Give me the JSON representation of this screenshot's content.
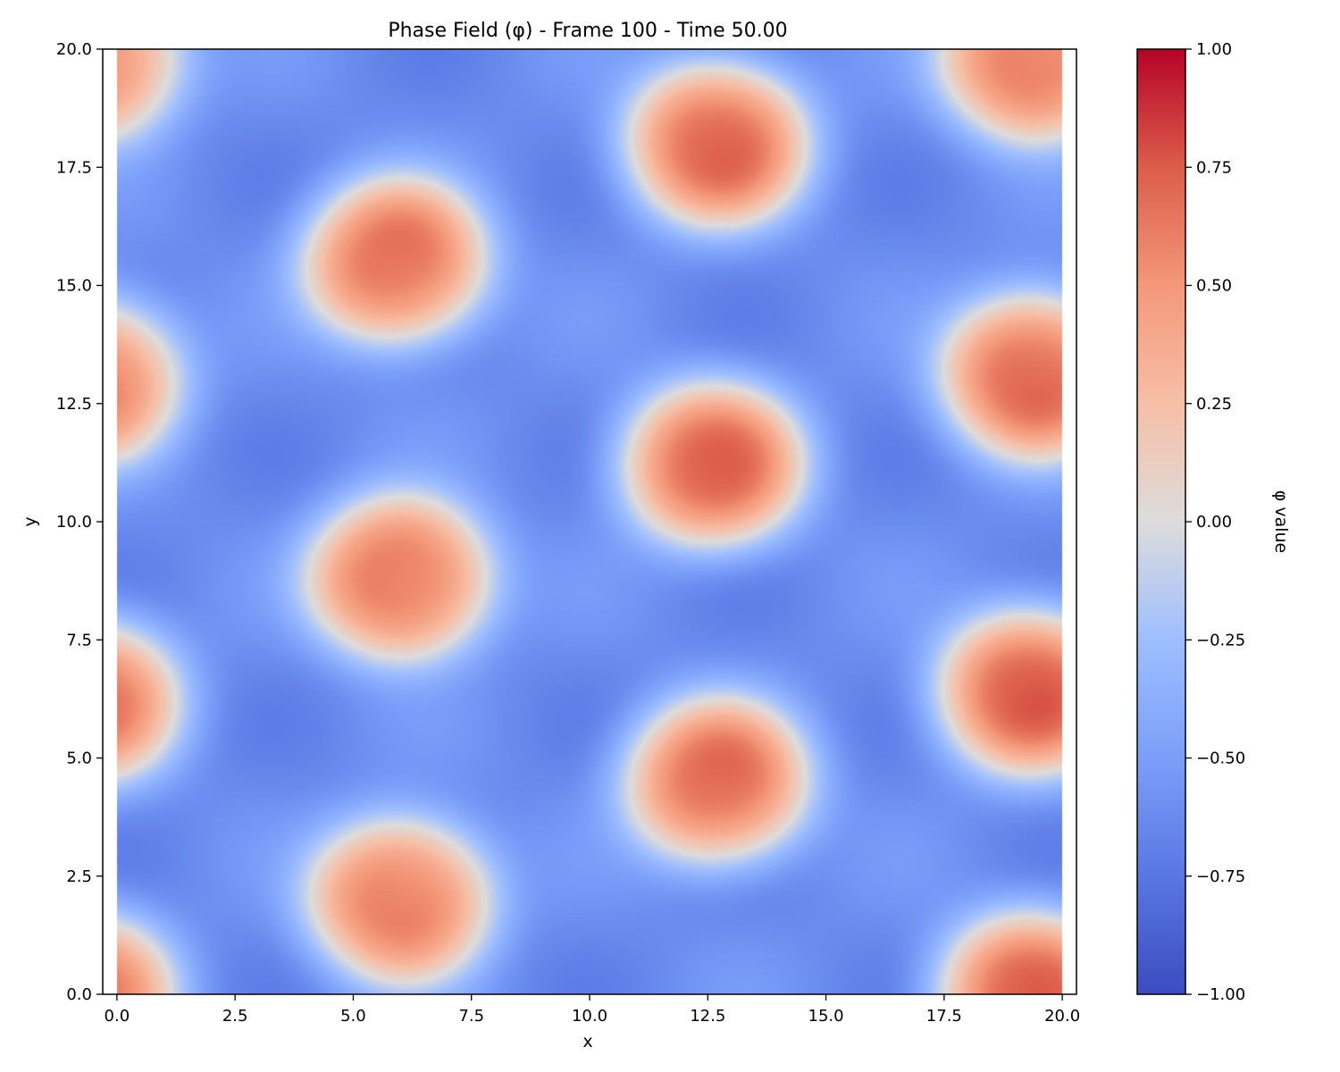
{
  "chart_data": {
    "type": "heatmap",
    "title": "Phase Field (φ) - Frame 100 - Time 50.00",
    "xlabel": "x",
    "ylabel": "y",
    "xlim": [
      -0.3,
      20.3
    ],
    "ylim": [
      0,
      20
    ],
    "data_extent": {
      "x": [
        0,
        20
      ],
      "y": [
        0,
        20
      ]
    },
    "x_ticks": [
      {
        "value": 0.0,
        "label": "0.0"
      },
      {
        "value": 2.5,
        "label": "2.5"
      },
      {
        "value": 5.0,
        "label": "5.0"
      },
      {
        "value": 7.5,
        "label": "7.5"
      },
      {
        "value": 10.0,
        "label": "10.0"
      },
      {
        "value": 12.5,
        "label": "12.5"
      },
      {
        "value": 15.0,
        "label": "15.0"
      },
      {
        "value": 17.5,
        "label": "17.5"
      },
      {
        "value": 20.0,
        "label": "20.0"
      }
    ],
    "y_ticks": [
      {
        "value": 0.0,
        "label": "0.0"
      },
      {
        "value": 2.5,
        "label": "2.5"
      },
      {
        "value": 5.0,
        "label": "5.0"
      },
      {
        "value": 7.5,
        "label": "7.5"
      },
      {
        "value": 10.0,
        "label": "10.0"
      },
      {
        "value": 12.5,
        "label": "12.5"
      },
      {
        "value": 15.0,
        "label": "15.0"
      },
      {
        "value": 17.5,
        "label": "17.5"
      },
      {
        "value": 20.0,
        "label": "20.0"
      }
    ],
    "colorbar": {
      "label": "φ value",
      "colormap": "coolwarm",
      "vmin": -1.0,
      "vmax": 1.0,
      "ticks": [
        {
          "value": 1.0,
          "label": "1.00"
        },
        {
          "value": 0.75,
          "label": "0.75"
        },
        {
          "value": 0.5,
          "label": "0.50"
        },
        {
          "value": 0.25,
          "label": "0.25"
        },
        {
          "value": 0.0,
          "label": "0.00"
        },
        {
          "value": -0.25,
          "label": "−0.25"
        },
        {
          "value": -0.5,
          "label": "−0.50"
        },
        {
          "value": -0.75,
          "label": "−0.75"
        },
        {
          "value": -1.0,
          "label": "−1.00"
        }
      ]
    },
    "field": {
      "background": -0.62,
      "modulation": 0.1,
      "blobs": [
        {
          "x": 6.0,
          "y": 2.0,
          "peak": 0.62
        },
        {
          "x": 6.0,
          "y": 8.8,
          "peak": 0.66
        },
        {
          "x": 5.9,
          "y": 15.5,
          "peak": 0.66
        },
        {
          "x": 12.7,
          "y": 4.5,
          "peak": 0.66
        },
        {
          "x": 12.6,
          "y": 11.2,
          "peak": 0.66
        },
        {
          "x": 12.7,
          "y": 18.0,
          "peak": 0.66
        },
        {
          "x": 19.3,
          "y": 0.0,
          "peak": 0.66
        },
        {
          "x": 19.3,
          "y": 6.4,
          "peak": 0.7
        },
        {
          "x": 19.4,
          "y": 13.1,
          "peak": 0.7
        },
        {
          "x": 19.4,
          "y": 19.8,
          "peak": 0.66
        },
        {
          "x": -0.7,
          "y": 0.0,
          "peak": 0.55
        },
        {
          "x": -0.6,
          "y": 6.2,
          "peak": 0.58
        },
        {
          "x": -0.6,
          "y": 13.0,
          "peak": 0.58
        },
        {
          "x": -0.6,
          "y": 19.8,
          "peak": 0.58
        }
      ]
    }
  }
}
